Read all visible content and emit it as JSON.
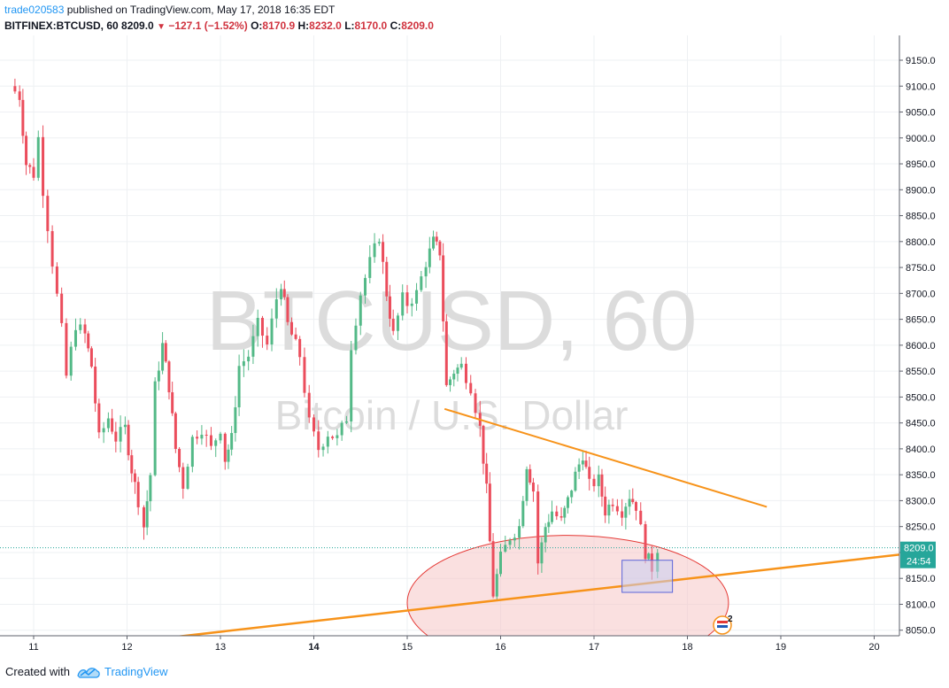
{
  "header": {
    "author": "trade020583",
    "published_text": "published on TradingView.com, May 17, 2018 16:35 EDT",
    "symbol": "BITFINEX:BTCUSD, 60",
    "last": "8209.0",
    "arrow": "▼",
    "change": "−127.1 (−1.52%)",
    "o_label": "O:",
    "o_value": "8170.9",
    "h_label": "H:",
    "h_value": "8232.0",
    "l_label": "L:",
    "l_value": "8170.0",
    "c_label": "C:",
    "c_value": "8209.0"
  },
  "watermark": {
    "line1": "BTCUSD, 60",
    "line2": "Bitcoin / U.S. Dollar"
  },
  "price_label": {
    "price": "8209.0",
    "countdown": "24:54"
  },
  "badge": {
    "count": "2"
  },
  "footer": {
    "created_with": "Created with",
    "brand": "TradingView"
  },
  "colors": {
    "up": "#53b987",
    "down": "#eb4d5c",
    "trendline": "#f7931a",
    "ellipse_fill": "#f5c6c6",
    "ellipse_stroke": "#e53935",
    "box_fill": "#c9cdf0",
    "box_stroke": "#5b64d9",
    "price_line": "#26a69a",
    "grid": "#eef0f3",
    "axis_text": "#131722",
    "watermark": "#dcdcdc"
  },
  "chart_data": {
    "type": "candlestick",
    "x_unit": "day (May 2018)",
    "ylim": [
      8030,
      9190
    ],
    "xlim": [
      10.7,
      21.3
    ],
    "y_ticks": [
      8050,
      8100,
      8150,
      8200,
      8250,
      8300,
      8350,
      8400,
      8450,
      8500,
      8550,
      8600,
      8650,
      8700,
      8750,
      8800,
      8850,
      8900,
      8950,
      9000,
      9050,
      9100,
      9150
    ],
    "y_tick_labels": [
      "8050.0",
      "8100.0",
      "8150.0",
      "8200.0",
      "8250.0",
      "8300.0",
      "8350.0",
      "8400.0",
      "8450.0",
      "8500.0",
      "8550.0",
      "8600.0",
      "8650.0",
      "8700.0",
      "8750.0",
      "8800.0",
      "8850.0",
      "8900.0",
      "8950.0",
      "9000.0",
      "9050.0",
      "9100.0",
      "9150.0"
    ],
    "x_ticks": [
      11,
      12,
      13,
      14,
      15,
      16,
      17,
      18,
      19,
      20
    ],
    "x_tick_labels": [
      "11",
      "12",
      "13",
      "14",
      "15",
      "16",
      "17",
      "18",
      "19",
      "20"
    ],
    "last_price": 8209.0,
    "path_anchors": [
      [
        10.75,
        9100
      ],
      [
        10.85,
        9080
      ],
      [
        10.92,
        8950
      ],
      [
        11.0,
        8930
      ],
      [
        11.05,
        9000
      ],
      [
        11.1,
        8900
      ],
      [
        11.2,
        8760
      ],
      [
        11.3,
        8630
      ],
      [
        11.35,
        8540
      ],
      [
        11.45,
        8640
      ],
      [
        11.55,
        8620
      ],
      [
        11.62,
        8560
      ],
      [
        11.7,
        8420
      ],
      [
        11.8,
        8460
      ],
      [
        11.88,
        8420
      ],
      [
        11.98,
        8440
      ],
      [
        12.05,
        8360
      ],
      [
        12.12,
        8300
      ],
      [
        12.18,
        8250
      ],
      [
        12.25,
        8350
      ],
      [
        12.3,
        8520
      ],
      [
        12.38,
        8600
      ],
      [
        12.45,
        8520
      ],
      [
        12.52,
        8400
      ],
      [
        12.6,
        8330
      ],
      [
        12.7,
        8420
      ],
      [
        12.8,
        8440
      ],
      [
        12.9,
        8400
      ],
      [
        13.0,
        8440
      ],
      [
        13.05,
        8380
      ],
      [
        13.12,
        8420
      ],
      [
        13.2,
        8560
      ],
      [
        13.3,
        8580
      ],
      [
        13.4,
        8640
      ],
      [
        13.5,
        8600
      ],
      [
        13.6,
        8690
      ],
      [
        13.65,
        8720
      ],
      [
        13.72,
        8640
      ],
      [
        13.85,
        8580
      ],
      [
        13.95,
        8450
      ],
      [
        14.05,
        8400
      ],
      [
        14.15,
        8430
      ],
      [
        14.25,
        8420
      ],
      [
        14.35,
        8460
      ],
      [
        14.4,
        8600
      ],
      [
        14.5,
        8700
      ],
      [
        14.6,
        8760
      ],
      [
        14.7,
        8810
      ],
      [
        14.78,
        8700
      ],
      [
        14.85,
        8620
      ],
      [
        14.95,
        8690
      ],
      [
        15.0,
        8680
      ],
      [
        15.1,
        8700
      ],
      [
        15.2,
        8760
      ],
      [
        15.28,
        8800
      ],
      [
        15.35,
        8780
      ],
      [
        15.42,
        8520
      ],
      [
        15.5,
        8550
      ],
      [
        15.58,
        8560
      ],
      [
        15.68,
        8520
      ],
      [
        15.78,
        8440
      ],
      [
        15.85,
        8320
      ],
      [
        15.92,
        8120
      ],
      [
        16.0,
        8190
      ],
      [
        16.1,
        8230
      ],
      [
        16.2,
        8250
      ],
      [
        16.28,
        8370
      ],
      [
        16.35,
        8320
      ],
      [
        16.4,
        8180
      ],
      [
        16.48,
        8250
      ],
      [
        16.55,
        8280
      ],
      [
        16.65,
        8260
      ],
      [
        16.72,
        8300
      ],
      [
        16.8,
        8350
      ],
      [
        16.88,
        8390
      ],
      [
        16.95,
        8330
      ],
      [
        17.05,
        8340
      ],
      [
        17.12,
        8280
      ],
      [
        17.2,
        8300
      ],
      [
        17.3,
        8280
      ],
      [
        17.38,
        8310
      ],
      [
        17.45,
        8290
      ],
      [
        17.55,
        8200
      ],
      [
        17.62,
        8170
      ],
      [
        17.68,
        8209
      ]
    ],
    "annotations": [
      {
        "kind": "trendline",
        "from": [
          15.4,
          8477
        ],
        "to": [
          18.85,
          8288
        ]
      },
      {
        "kind": "trendline",
        "from": [
          11.0,
          8006
        ],
        "to": [
          21.3,
          8217
        ]
      },
      {
        "kind": "ellipse",
        "center": [
          16.72,
          8103
        ],
        "radius_days": 1.72,
        "radius_price": 130
      },
      {
        "kind": "rectangle",
        "from": [
          17.3,
          8185
        ],
        "to": [
          17.84,
          8123
        ]
      }
    ]
  }
}
